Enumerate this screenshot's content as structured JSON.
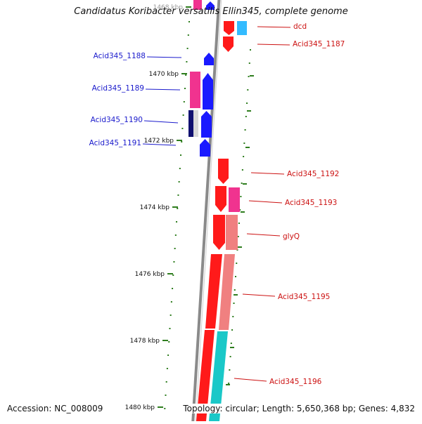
{
  "title": "Candidatus Koribacter versatilis Ellin345, complete genome",
  "footer": {
    "accession": "Accession: NC_008009",
    "topology": "Topology: circular; Length: 5,650,368 bp; Genes: 4,832"
  },
  "scale": {
    "unit": "kbp",
    "ticks": [
      {
        "label": "1468 kbp"
      },
      {
        "label": "1470 kbp"
      },
      {
        "label": "1472 kbp"
      },
      {
        "label": "1474 kbp"
      },
      {
        "label": "1476 kbp"
      },
      {
        "label": "1478 kbp"
      },
      {
        "label": "1480 kbp"
      }
    ]
  },
  "colors": {
    "backbone": "#8a8a8a",
    "tick": "#2e7d1e",
    "label_blue": "#1a1acc",
    "label_red": "#cc1111",
    "red": "#ff1a1a",
    "pink": "#f0338f",
    "salmon": "#f08080",
    "blue": "#1a1aff",
    "navy": "#101070",
    "cyan": "#1ac8c8",
    "lightblue": "#33bbff",
    "lightgray": "#d8d8d8"
  },
  "genes_left": [
    {
      "label": "Acid345_1188"
    },
    {
      "label": "Acid345_1189"
    },
    {
      "label": "Acid345_1190"
    },
    {
      "label": "Acid345_1191"
    }
  ],
  "genes_right": [
    {
      "label": "dcd"
    },
    {
      "label": "Acid345_1187"
    },
    {
      "label": "Acid345_1192"
    },
    {
      "label": "Acid345_1193"
    },
    {
      "label": "glyQ"
    },
    {
      "label": "Acid345_1195"
    },
    {
      "label": "Acid345_1196"
    }
  ]
}
